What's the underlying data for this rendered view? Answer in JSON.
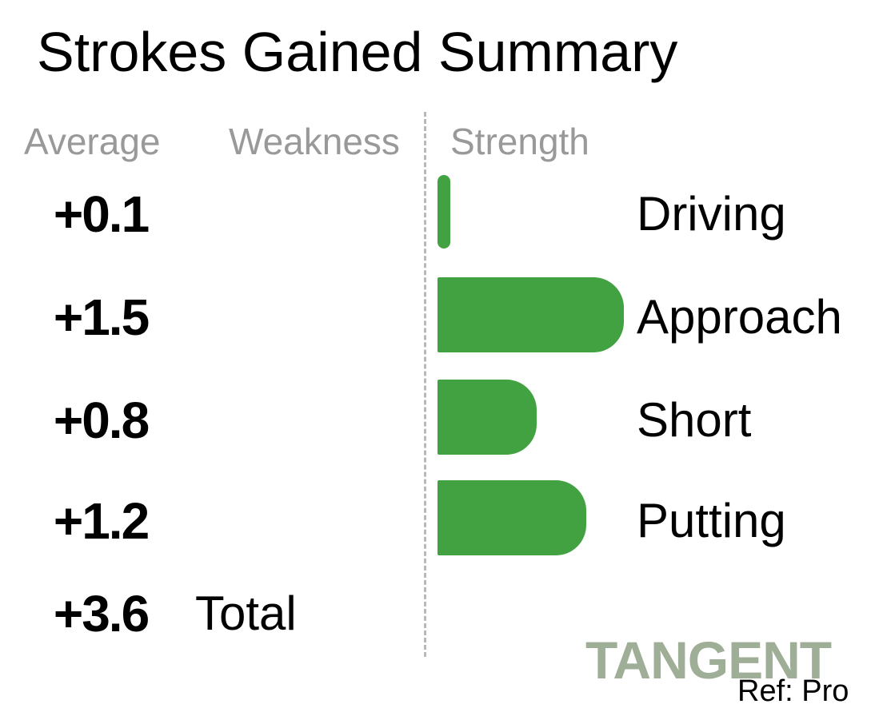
{
  "title": "Strokes Gained Summary",
  "headers": {
    "average": "Average",
    "weakness": "Weakness",
    "strength": "Strength"
  },
  "total": {
    "value": "+3.6",
    "label": "Total"
  },
  "logo": "TANGENT",
  "ref": "Ref: Pro",
  "colors": {
    "bar": "#42a141",
    "divider": "#b9b9b9",
    "header": "#999999",
    "logo": "#9fae96"
  },
  "chart_data": {
    "type": "bar",
    "orientation": "horizontal",
    "categories": [
      "Driving",
      "Approach",
      "Short",
      "Putting"
    ],
    "values": [
      0.1,
      1.5,
      0.8,
      1.2
    ],
    "value_labels": [
      "+0.1",
      "+1.5",
      "+0.8",
      "+1.2"
    ],
    "total": 3.6,
    "title": "Strokes Gained Summary"
  }
}
